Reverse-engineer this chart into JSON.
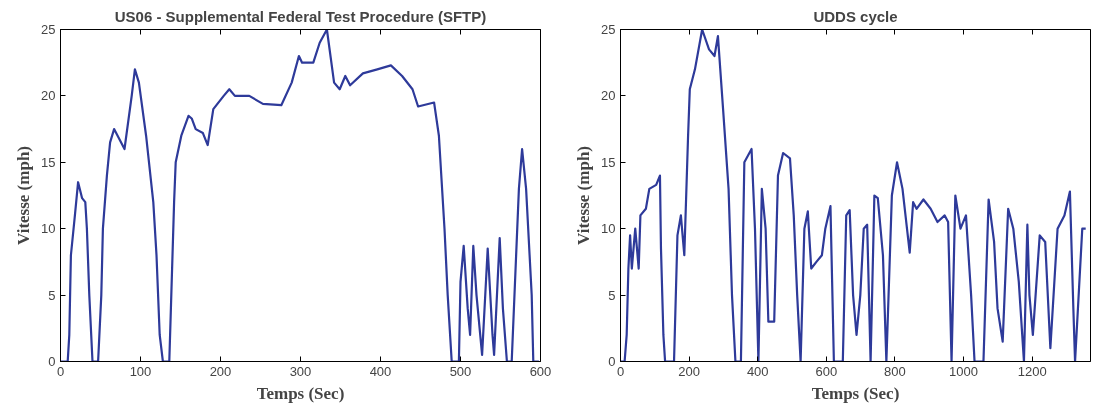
{
  "chart_data": [
    {
      "type": "line",
      "title": "US06 - Supplemental Federal Test Procedure (SFTP)",
      "xlabel": "Temps (Sec)",
      "ylabel": "Vitesse (mph)",
      "xlim": [
        0,
        600
      ],
      "xticks": [
        0,
        100,
        200,
        300,
        400,
        500,
        600
      ],
      "ylim": [
        0,
        25
      ],
      "yticks": [
        0,
        5,
        10,
        15,
        20,
        25
      ],
      "grid": false,
      "marker": "none",
      "line_style": "solid",
      "series": [
        {
          "color": "#2e3a9a",
          "x": [
            0,
            9,
            11,
            13,
            18,
            22,
            27,
            31,
            33,
            36,
            40,
            47,
            51,
            53,
            58,
            62,
            67,
            80,
            89,
            93,
            98,
            107,
            116,
            120,
            124,
            128,
            136,
            138,
            142,
            144,
            151,
            160,
            164,
            169,
            178,
            184,
            191,
            204,
            211,
            218,
            236,
            253,
            276,
            289,
            298,
            302,
            316,
            324,
            333,
            342,
            349,
            356,
            362,
            378,
            396,
            413,
            427,
            440,
            447,
            467,
            473,
            480,
            484,
            489,
            498,
            500,
            504,
            509,
            512,
            516,
            520,
            527,
            534,
            540,
            542,
            549,
            553,
            558,
            564,
            573,
            577,
            582,
            589,
            591,
            598
          ],
          "values": [
            0,
            0,
            2,
            8,
            11,
            13.5,
            12.3,
            12,
            10,
            5,
            0,
            0,
            5,
            10,
            14,
            16.5,
            17.5,
            16,
            20,
            22,
            21,
            17,
            12,
            8,
            2,
            0,
            0,
            4,
            12,
            15,
            17,
            18.5,
            18.3,
            17.5,
            17.2,
            16.3,
            19,
            20,
            20.5,
            20,
            20,
            19.4,
            19.3,
            21,
            23,
            22.5,
            22.5,
            24,
            25,
            21,
            20.5,
            21.5,
            20.8,
            21.7,
            22,
            22.3,
            21.5,
            20.5,
            19.2,
            19.5,
            17,
            10,
            5,
            0,
            0,
            6,
            8.7,
            4,
            2,
            8.7,
            5,
            0.5,
            8.5,
            2,
            0.5,
            9.3,
            4,
            0,
            0,
            13,
            16,
            13,
            5,
            0,
            0
          ]
        }
      ]
    },
    {
      "type": "line",
      "title": "UDDS cycle",
      "xlabel": "Temps (Sec)",
      "ylabel": "Vitesse (mph)",
      "xlim": [
        0,
        1370
      ],
      "xticks": [
        0,
        200,
        400,
        600,
        800,
        1000,
        1200
      ],
      "ylim": [
        0,
        25
      ],
      "yticks": [
        0,
        5,
        10,
        15,
        20,
        25
      ],
      "grid": false,
      "marker": "none",
      "line_style": "solid",
      "series": [
        {
          "color": "#2e3a9a",
          "x": [
            0,
            12,
            18,
            23,
            28,
            33,
            43,
            53,
            58,
            74,
            84,
            104,
            115,
            118,
            125,
            130,
            156,
            166,
            176,
            186,
            197,
            202,
            217,
            238,
            258,
            274,
            284,
            299,
            315,
            325,
            335,
            351,
            361,
            382,
            392,
            402,
            412,
            423,
            431,
            448,
            459,
            474,
            494,
            505,
            515,
            525,
            536,
            546,
            556,
            571,
            587,
            597,
            612,
            622,
            648,
            658,
            668,
            678,
            688,
            699,
            709,
            719,
            729,
            740,
            750,
            765,
            775,
            791,
            806,
            822,
            843,
            853,
            863,
            883,
            904,
            924,
            945,
            955,
            965,
            976,
            991,
            1007,
            1022,
            1032,
            1058,
            1073,
            1089,
            1099,
            1114,
            1130,
            1145,
            1161,
            1176,
            1186,
            1192,
            1202,
            1222,
            1238,
            1253,
            1274,
            1294,
            1310,
            1320,
            1325,
            1346,
            1356
          ],
          "values": [
            0,
            0,
            2,
            7,
            9.5,
            7,
            10,
            7,
            11,
            11.5,
            13,
            13.3,
            14,
            8.5,
            2,
            0,
            0,
            9.5,
            11,
            8,
            17,
            20.5,
            22,
            25,
            23.5,
            23,
            24.5,
            19,
            13,
            5,
            0,
            0,
            15,
            16,
            10,
            0,
            13,
            10,
            3,
            3,
            14,
            15.7,
            15.3,
            11,
            5,
            0,
            10,
            11.3,
            7,
            7.5,
            8,
            10,
            11.7,
            0,
            0,
            11,
            11.4,
            5,
            2,
            5,
            10,
            10.3,
            0,
            12.5,
            12.3,
            8,
            0,
            12.5,
            15,
            13,
            8.2,
            12,
            11.5,
            12.2,
            11.5,
            10.5,
            11,
            10.5,
            0,
            12.5,
            10,
            11,
            5,
            0,
            0,
            12.2,
            9,
            4,
            1.5,
            11.5,
            10,
            6,
            0,
            10.3,
            5,
            2,
            9.5,
            9,
            1,
            10,
            11,
            12.8,
            4,
            0,
            10,
            10
          ]
        }
      ]
    }
  ]
}
